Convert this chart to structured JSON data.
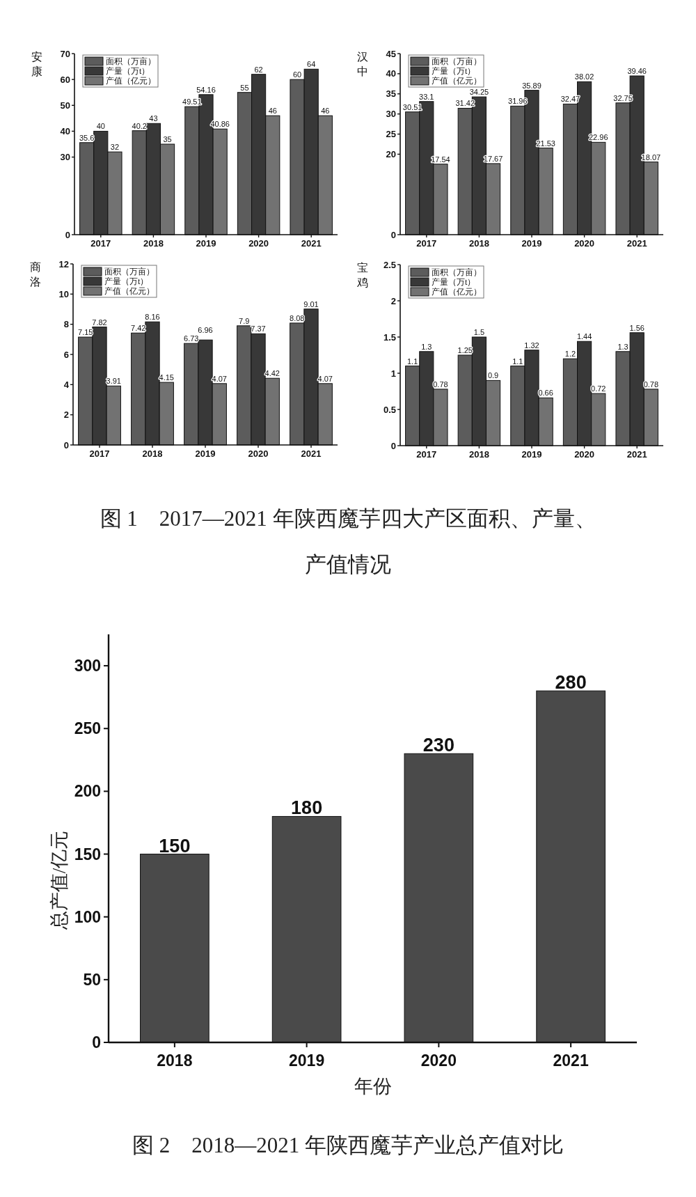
{
  "chart_data": [
    {
      "type": "bar",
      "title": "安康",
      "categories": [
        "2017",
        "2018",
        "2019",
        "2020",
        "2021"
      ],
      "series": [
        {
          "name": "面积（万亩）",
          "color": "#5c5c5c",
          "values": [
            35.6,
            40.2,
            49.51,
            55,
            60
          ]
        },
        {
          "name": "产量（万t）",
          "color": "#383838",
          "values": [
            40,
            43,
            54.16,
            62,
            64
          ]
        },
        {
          "name": "产值（亿元）",
          "color": "#727272",
          "values": [
            32,
            35,
            40.86,
            46,
            46
          ]
        }
      ],
      "ylim": [
        0,
        70
      ],
      "yticks": [
        0,
        30,
        40,
        50,
        60,
        70
      ],
      "data_labels": true,
      "legend": "top left",
      "annotations": [
        "图 1　2017—2021 年陕西魔芋四大产区面积、产量、产值情况"
      ]
    },
    {
      "type": "bar",
      "title": "汉中",
      "categories": [
        "2017",
        "2018",
        "2019",
        "2020",
        "2021"
      ],
      "series": [
        {
          "name": "面积（万亩）",
          "color": "#5c5c5c",
          "values": [
            30.51,
            31.42,
            31.96,
            32.47,
            32.75
          ]
        },
        {
          "name": "产量（万t）",
          "color": "#383838",
          "values": [
            33.1,
            34.25,
            35.89,
            38.02,
            39.46
          ]
        },
        {
          "name": "产值（亿元）",
          "color": "#727272",
          "values": [
            17.54,
            17.67,
            21.53,
            22.96,
            18.07
          ]
        }
      ],
      "ylim": [
        0,
        45
      ],
      "yticks": [
        0,
        20,
        25,
        30,
        35,
        40,
        45
      ],
      "data_labels": true,
      "legend": "top left"
    },
    {
      "type": "bar",
      "title": "商洛",
      "categories": [
        "2017",
        "2018",
        "2019",
        "2020",
        "2021"
      ],
      "series": [
        {
          "name": "面积（万亩）",
          "color": "#5c5c5c",
          "values": [
            7.15,
            7.42,
            6.73,
            7.9,
            8.08
          ]
        },
        {
          "name": "产量（万t）",
          "color": "#383838",
          "values": [
            7.82,
            8.16,
            6.96,
            7.37,
            9.01
          ]
        },
        {
          "name": "产值（亿元）",
          "color": "#727272",
          "values": [
            3.91,
            4.15,
            4.07,
            4.42,
            4.07
          ]
        }
      ],
      "ylim": [
        0,
        12
      ],
      "yticks": [
        0,
        2,
        4,
        6,
        8,
        10,
        12
      ],
      "data_labels": true,
      "legend": "top left"
    },
    {
      "type": "bar",
      "title": "宝鸡",
      "categories": [
        "2017",
        "2018",
        "2019",
        "2020",
        "2021"
      ],
      "series": [
        {
          "name": "面积（万亩）",
          "color": "#5c5c5c",
          "values": [
            1.1,
            1.25,
            1.1,
            1.2,
            1.3
          ]
        },
        {
          "name": "产量（万t）",
          "color": "#383838",
          "values": [
            1.3,
            1.5,
            1.32,
            1.44,
            1.56
          ]
        },
        {
          "name": "产值（亿元）",
          "color": "#727272",
          "values": [
            0.78,
            0.9,
            0.66,
            0.72,
            0.78
          ]
        }
      ],
      "ylim": [
        0,
        2.5
      ],
      "yticks": [
        0,
        0.5,
        1,
        1.5,
        2,
        2.5
      ],
      "data_labels": true,
      "legend": "top left"
    },
    {
      "type": "bar",
      "categories": [
        "2018",
        "2019",
        "2020",
        "2021"
      ],
      "values": [
        150,
        180,
        230,
        280
      ],
      "color": "#4a4a4a",
      "xlabel": "年份",
      "ylabel": "总产值/亿元",
      "ylim": [
        0,
        325
      ],
      "yticks": [
        0,
        50,
        100,
        150,
        200,
        250,
        300
      ],
      "data_labels": true,
      "annotations": [
        "图 2　2018—2021 年陕西魔芋产业总产值对比"
      ]
    }
  ]
}
